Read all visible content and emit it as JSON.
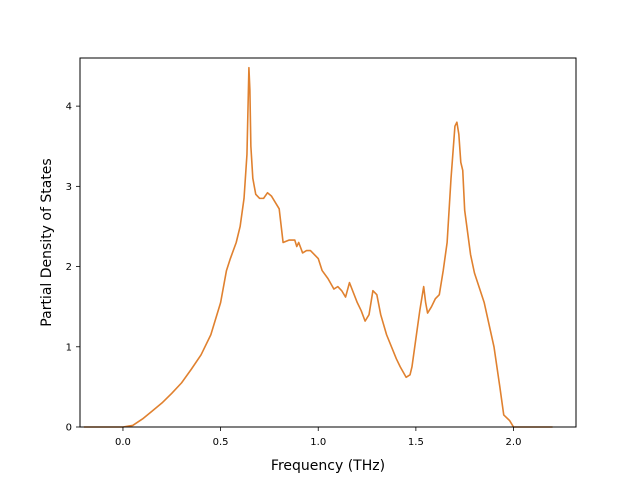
{
  "chart_data": {
    "type": "line",
    "xlabel": "Frequency (THz)",
    "ylabel": "Partial Density of States",
    "xlim": [
      -0.22,
      2.32
    ],
    "ylim": [
      0,
      4.6
    ],
    "x_ticks": [
      0.0,
      0.5,
      1.0,
      1.5,
      2.0
    ],
    "x_tick_labels": [
      "0.0",
      "0.5",
      "1.0",
      "1.5",
      "2.0"
    ],
    "y_ticks": [
      0,
      1,
      2,
      3,
      4
    ],
    "y_tick_labels": [
      "0",
      "1",
      "2",
      "3",
      "4"
    ],
    "grid": false,
    "series": [
      {
        "color": "#e0812f",
        "x": [
          -0.2,
          0.0,
          0.05,
          0.1,
          0.15,
          0.2,
          0.25,
          0.3,
          0.35,
          0.4,
          0.45,
          0.5,
          0.53,
          0.55,
          0.58,
          0.6,
          0.62,
          0.635,
          0.645,
          0.65,
          0.655,
          0.665,
          0.68,
          0.7,
          0.72,
          0.74,
          0.76,
          0.8,
          0.82,
          0.85,
          0.88,
          0.89,
          0.9,
          0.92,
          0.94,
          0.96,
          0.98,
          1.0,
          1.02,
          1.05,
          1.08,
          1.1,
          1.12,
          1.14,
          1.16,
          1.2,
          1.22,
          1.24,
          1.26,
          1.28,
          1.3,
          1.32,
          1.35,
          1.4,
          1.42,
          1.45,
          1.47,
          1.48,
          1.5,
          1.52,
          1.54,
          1.55,
          1.56,
          1.58,
          1.6,
          1.62,
          1.64,
          1.66,
          1.68,
          1.7,
          1.71,
          1.72,
          1.73,
          1.74,
          1.75,
          1.78,
          1.8,
          1.85,
          1.9,
          1.93,
          1.95,
          1.98,
          2.0,
          2.05,
          2.2
        ],
        "y": [
          0,
          0,
          0.02,
          0.1,
          0.2,
          0.3,
          0.42,
          0.55,
          0.72,
          0.9,
          1.15,
          1.55,
          1.95,
          2.1,
          2.3,
          2.5,
          2.85,
          3.4,
          4.48,
          4.2,
          3.5,
          3.1,
          2.9,
          2.85,
          2.85,
          2.92,
          2.88,
          2.72,
          2.3,
          2.33,
          2.33,
          2.25,
          2.3,
          2.17,
          2.2,
          2.2,
          2.15,
          2.1,
          1.95,
          1.85,
          1.72,
          1.75,
          1.7,
          1.62,
          1.8,
          1.55,
          1.45,
          1.32,
          1.4,
          1.7,
          1.65,
          1.4,
          1.15,
          0.85,
          0.75,
          0.62,
          0.65,
          0.75,
          1.1,
          1.45,
          1.75,
          1.55,
          1.42,
          1.5,
          1.6,
          1.65,
          1.95,
          2.3,
          3.1,
          3.75,
          3.8,
          3.65,
          3.3,
          3.2,
          2.7,
          2.15,
          1.92,
          1.55,
          1.0,
          0.5,
          0.15,
          0.08,
          0,
          0,
          0
        ]
      }
    ]
  }
}
